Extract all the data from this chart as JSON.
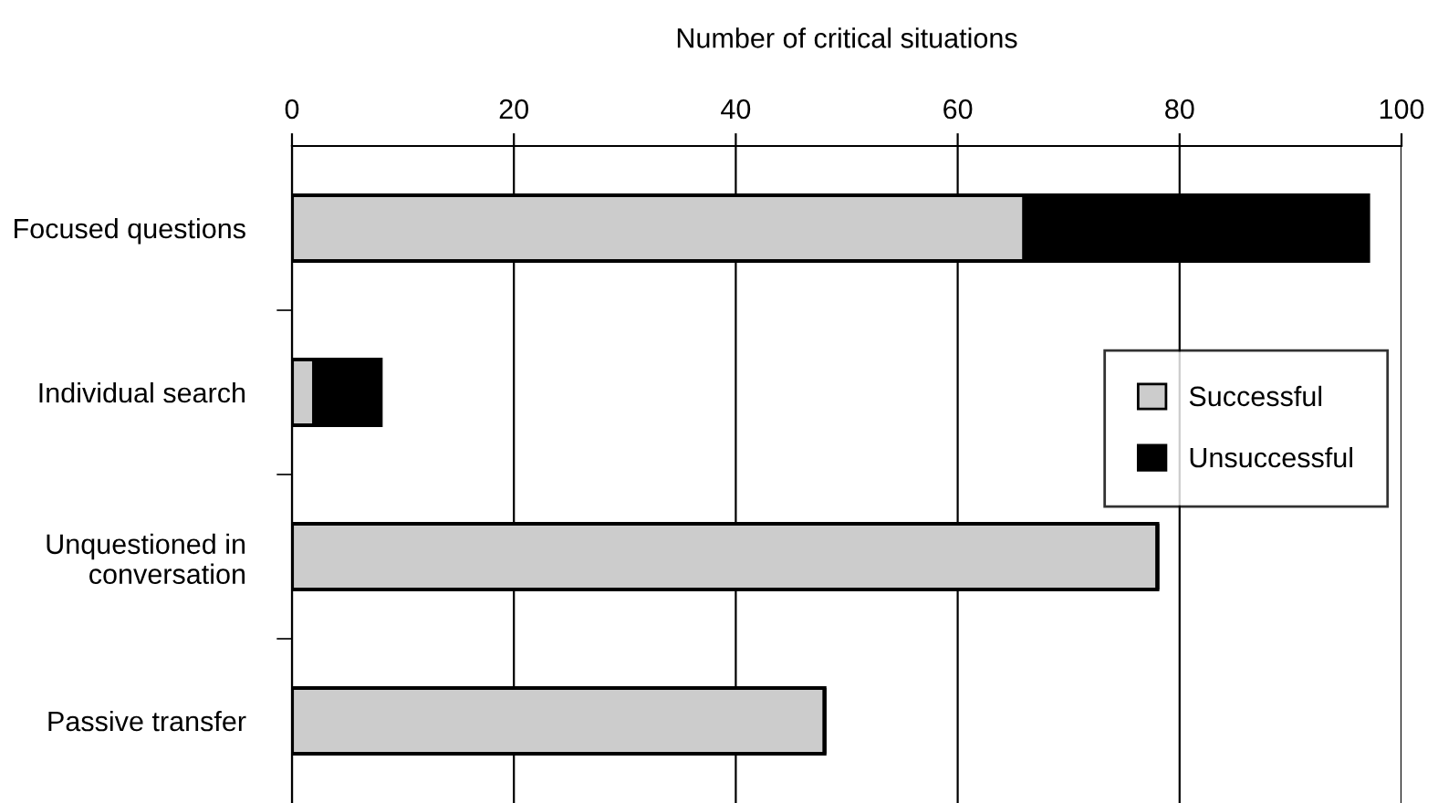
{
  "chart_data": {
    "type": "bar",
    "orientation": "horizontal",
    "stacked": true,
    "xlabel": "Number of critical situations",
    "categories": [
      "Focused questions",
      "Individual search",
      "Unquestioned in\nconversation",
      "Passive transfer"
    ],
    "series": [
      {
        "name": "Successful",
        "color": "#cccccc",
        "values": [
          66,
          2,
          78,
          48
        ]
      },
      {
        "name": "Unsuccessful",
        "color": "#000000",
        "values": [
          31,
          6,
          0,
          0
        ]
      }
    ],
    "xlim": [
      0,
      100
    ],
    "xticks": [
      0,
      20,
      40,
      60,
      80,
      100
    ],
    "grid": "x",
    "legend": "right"
  }
}
